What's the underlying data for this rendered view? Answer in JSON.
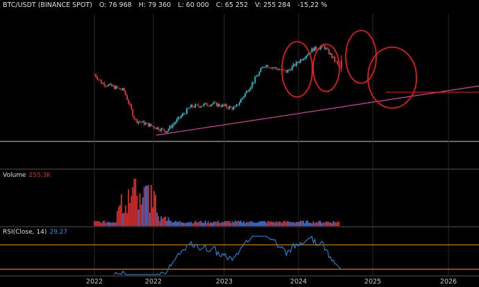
{
  "header": {
    "symbol": "BTC/USDT (BINANCE SPOT)",
    "open": "O: 76 968",
    "high": "H: 79 360",
    "low": "L: 60 000",
    "close": "C: 65 252",
    "volume": "V: 255 284",
    "change": "-15,22 %"
  },
  "volume_pane": {
    "label": "Volume",
    "value": "255,3K",
    "value_color": "#d32f2f"
  },
  "rsi_pane": {
    "label": "RSI(Close, 14)",
    "value": "29,27",
    "value_color": "#2196f3"
  },
  "colors": {
    "up": "#26c6da",
    "down": "#e53935",
    "vol_up": "#3f6fd8",
    "vol_down": "#d32f2f",
    "trendline": "#e040a0",
    "annotation": "#ff1a1a",
    "rsi_line": "#2196f3",
    "rsi_band": "#ff9800",
    "grid": "#2a2a2a"
  },
  "chart_data": [
    {
      "type": "candlestick",
      "title": "BTC/USDT (BINANCE SPOT)",
      "x_ticks": [
        "2022",
        "2022",
        "2023",
        "2024",
        "2025",
        "2026"
      ],
      "x_range": [
        2021.0,
        2026.5
      ],
      "y_range": [
        10000,
        150000
      ],
      "y_scale": "log",
      "weekly_closes_approx": [
        {
          "date": 2021.9,
          "close": 57000
        },
        {
          "date": 2022.0,
          "close": 47000
        },
        {
          "date": 2022.3,
          "close": 40000
        },
        {
          "date": 2022.45,
          "close": 21000
        },
        {
          "date": 2022.87,
          "close": 16500
        },
        {
          "date": 2023.2,
          "close": 28000
        },
        {
          "date": 2023.5,
          "close": 30000
        },
        {
          "date": 2023.8,
          "close": 27000
        },
        {
          "date": 2024.0,
          "close": 43000
        },
        {
          "date": 2024.2,
          "close": 70000
        },
        {
          "date": 2024.5,
          "close": 60000
        },
        {
          "date": 2024.85,
          "close": 98000
        },
        {
          "date": 2025.0,
          "close": 105000
        },
        {
          "date": 2025.1,
          "close": 86000
        },
        {
          "date": 2025.22,
          "close": 65252
        }
      ],
      "annotations": [
        "trendline",
        "circles"
      ]
    },
    {
      "type": "bar",
      "name": "Volume",
      "last_value": "255,3K",
      "shape": "volume spikes during 2022 sell-off, low afterwards"
    },
    {
      "type": "line",
      "name": "RSI(Close, 14)",
      "last_value": 29.27,
      "bands": [
        70,
        30
      ],
      "ylim": [
        20,
        85
      ]
    }
  ]
}
